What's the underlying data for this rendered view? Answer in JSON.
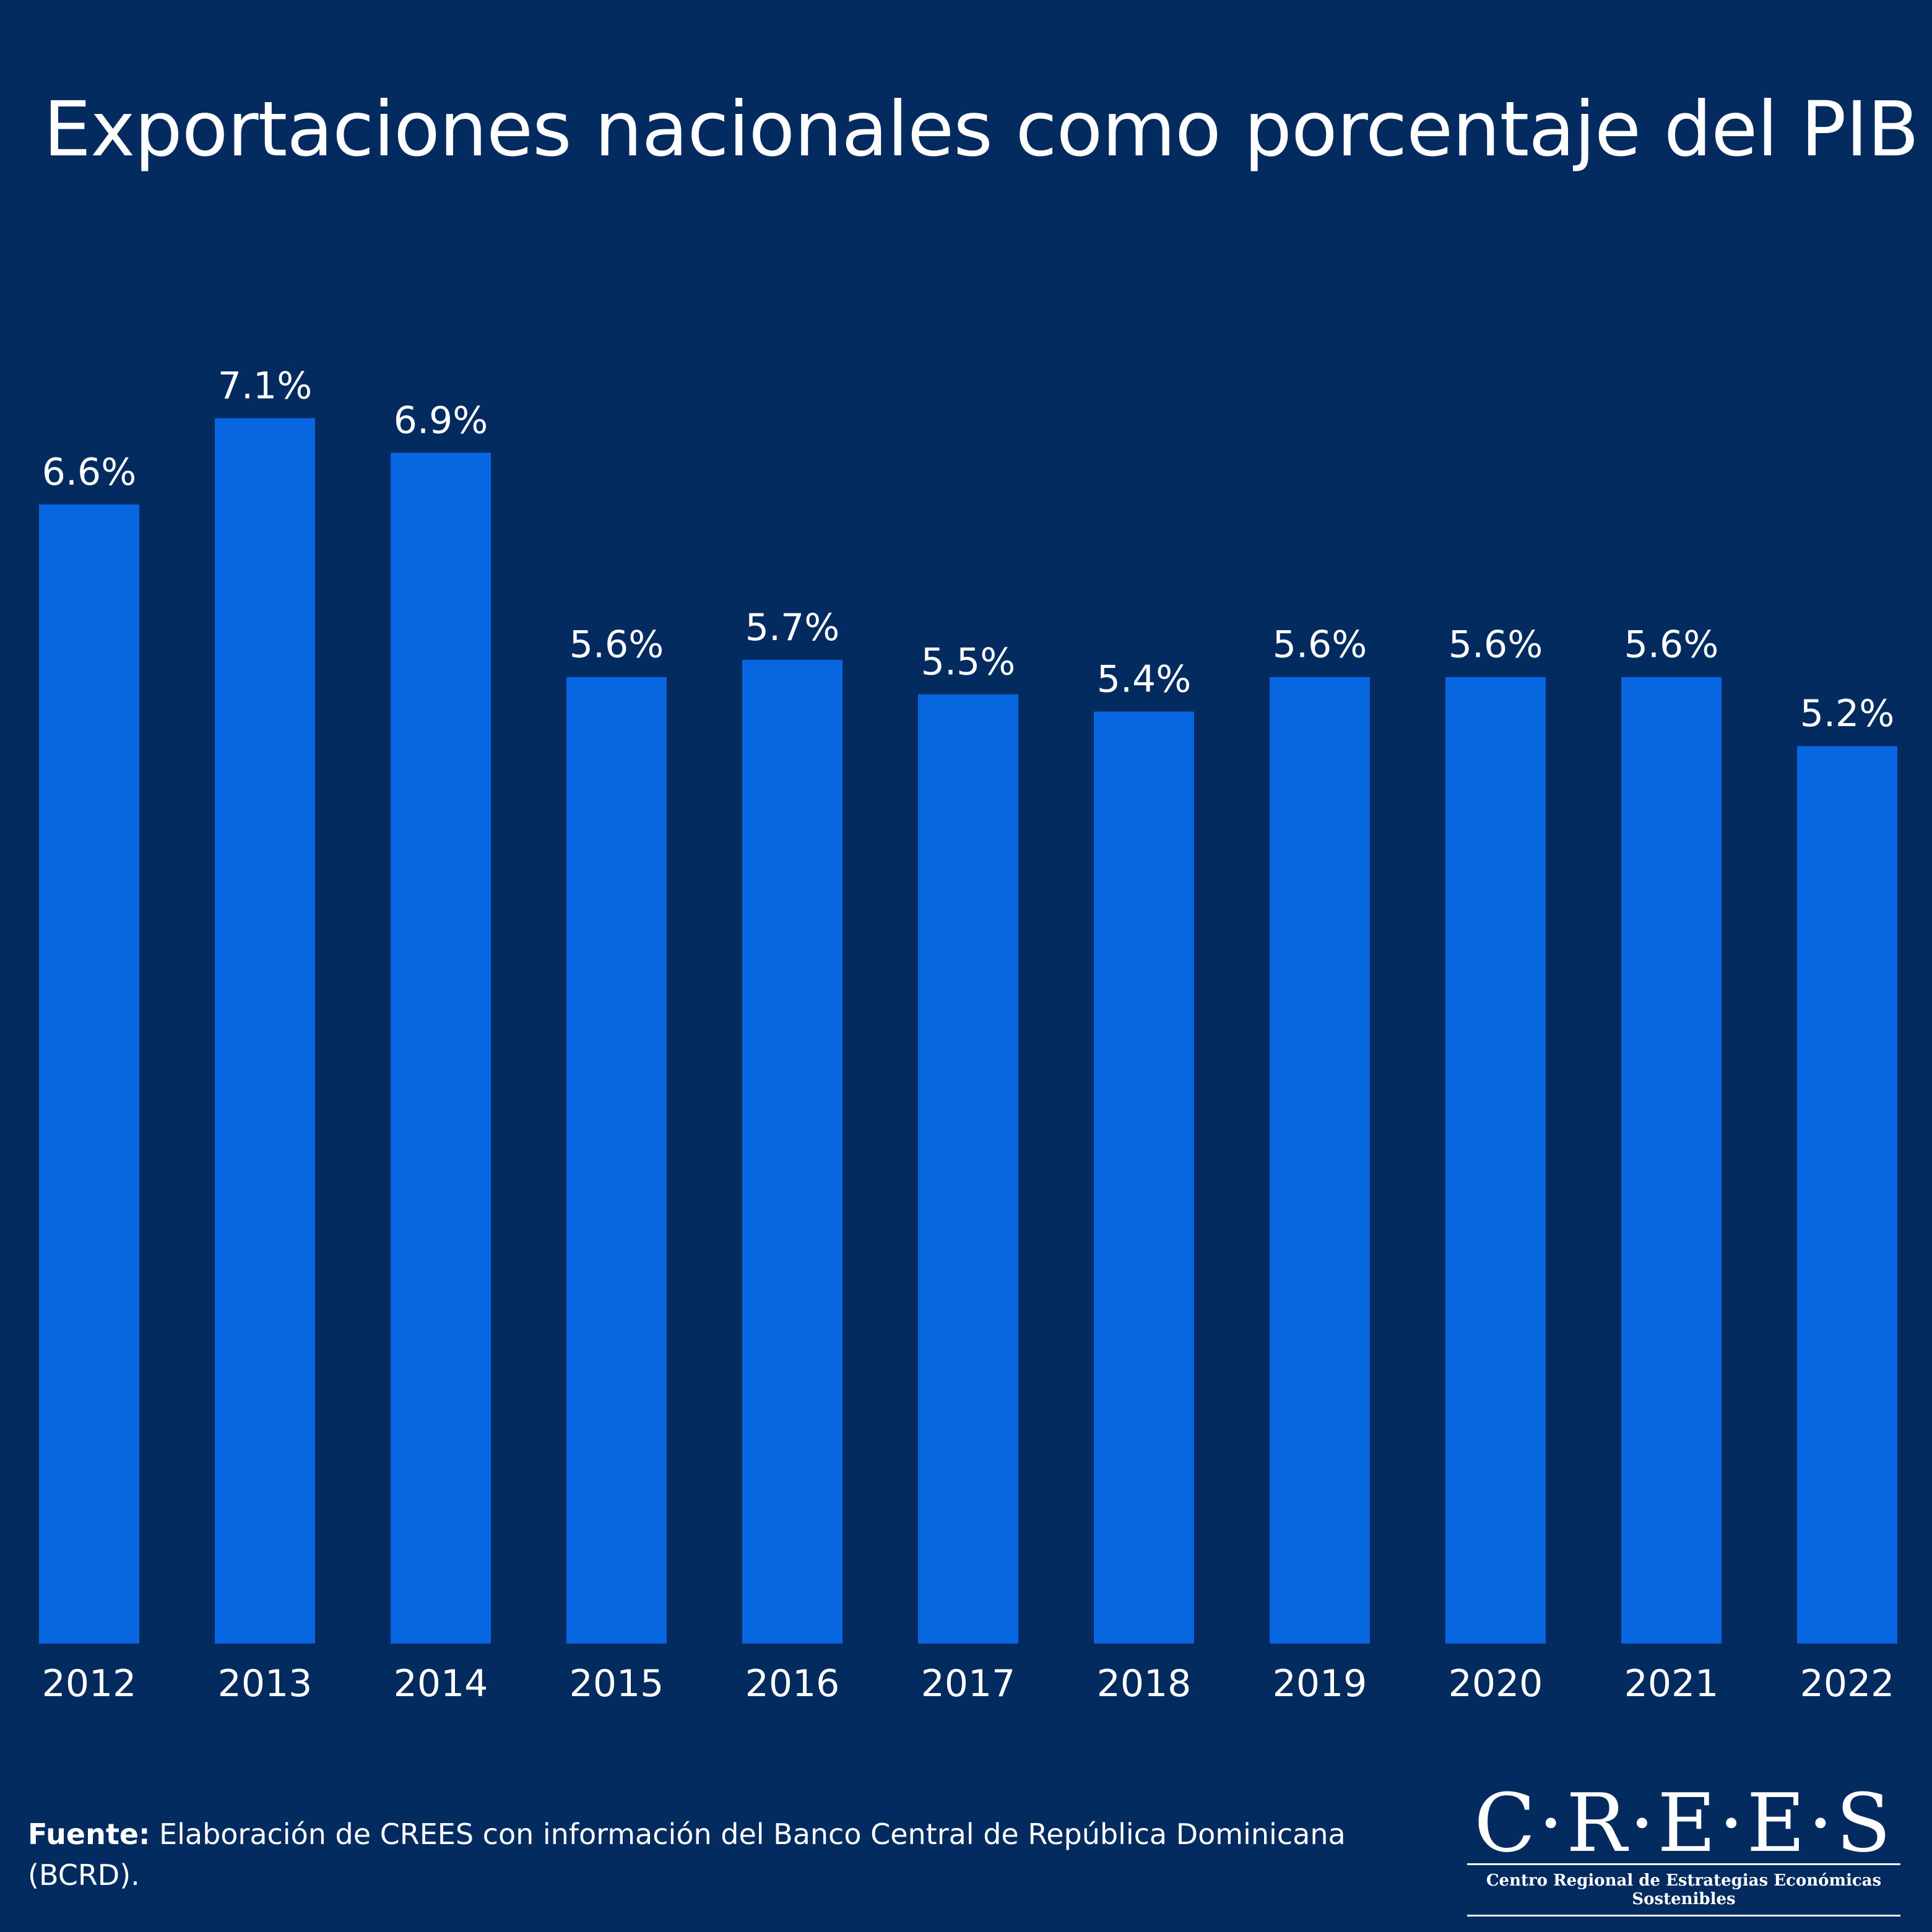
{
  "chart_data": {
    "type": "bar",
    "title": "Exportaciones nacionales como porcentaje del PIB",
    "xlabel": "",
    "ylabel": "",
    "ylim": [
      0,
      7.1
    ],
    "grid": false,
    "legend": "none",
    "categories": [
      "2012",
      "2013",
      "2014",
      "2015",
      "2016",
      "2017",
      "2018",
      "2019",
      "2020",
      "2021",
      "2022"
    ],
    "values": [
      6.6,
      7.1,
      6.9,
      5.6,
      5.7,
      5.5,
      5.4,
      5.6,
      5.6,
      5.6,
      5.2
    ],
    "value_labels": [
      "6.6%",
      "7.1%",
      "6.9%",
      "5.6%",
      "5.7%",
      "5.5%",
      "5.4%",
      "5.6%",
      "5.6%",
      "5.6%",
      "5.2%"
    ],
    "unit": "%",
    "colors": {
      "bar": "#0866e0",
      "background": "#032b60",
      "text": "#ffffff"
    }
  },
  "footer": {
    "source_label": "Fuente:",
    "source_text": " Elaboración de CREES con información del Banco Central de República Dominicana (BCRD)."
  },
  "logo": {
    "name": "C·R·E·E·S",
    "subtitle": "Centro Regional de Estrategias Económicas Sostenibles"
  }
}
